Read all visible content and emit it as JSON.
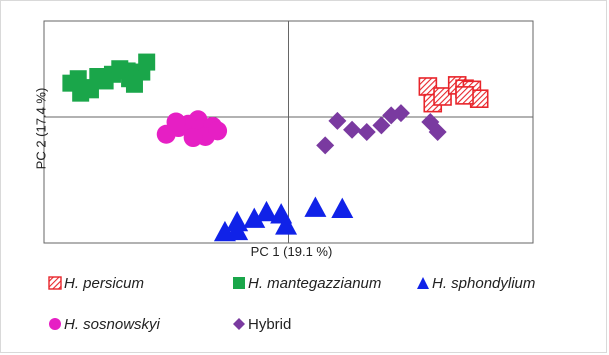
{
  "chart_data": {
    "type": "scatter",
    "xlabel": "PC 1 (19.1 %)",
    "ylabel": "PC 2 (17.4 %)",
    "xlim": [
      -10,
      10
    ],
    "ylim": [
      -10,
      10
    ],
    "grid": false,
    "zero_lines": true,
    "legend_position": "bottom",
    "series": [
      {
        "name": "H. persicum",
        "genus": "H.",
        "species": "persicum",
        "marker": "hatched-square",
        "color": "#e8252b",
        "x": [
          5.7,
          5.9,
          6.3,
          6.9,
          7.2,
          7.5,
          7.8,
          7.2
        ],
        "y": [
          4.1,
          2.6,
          3.2,
          4.2,
          3.9,
          3.8,
          3.0,
          3.3
        ]
      },
      {
        "name": "H. mantegazzianum",
        "genus": "H.",
        "species": "mantegazzianum",
        "marker": "square",
        "color": "#1aa64a",
        "x": [
          -8.9,
          -8.6,
          -8.5,
          -8.1,
          -7.8,
          -7.2,
          -6.6,
          -6.5,
          -6.0,
          -6.3,
          -5.8,
          -8.3,
          -7.5,
          -6.9
        ],
        "y": [
          4.4,
          4.8,
          3.5,
          3.8,
          5.0,
          5.2,
          5.5,
          4.8,
          5.4,
          4.3,
          6.3,
          4.0,
          4.6,
          5.7
        ],
        "x2_note": ""
      },
      {
        "name": "H. sphondylium",
        "genus": "H.",
        "species": "sphondylium",
        "marker": "triangle",
        "color": "#1022e8",
        "x": [
          -2.6,
          -2.1,
          -2.1,
          -1.4,
          -0.9,
          -0.3,
          -0.1,
          1.1,
          2.2
        ],
        "y": [
          -9.0,
          -8.9,
          -8.1,
          -7.8,
          -7.2,
          -7.4,
          -8.4,
          -6.8,
          -6.9
        ]
      },
      {
        "name": "H. sosnowskyi",
        "genus": "H.",
        "species": "sosnowskyi",
        "marker": "circle",
        "color": "#e61fc4",
        "x": [
          -7.0,
          -8.3,
          -7.8,
          -7.4,
          -6.9,
          -6.4,
          -6.7,
          -7.9,
          -7.2,
          -6.2
        ],
        "y": [
          1.1,
          -0.2,
          0.4,
          0.7,
          0.3,
          0.5,
          -0.4,
          0.9,
          -0.5,
          0.1
        ],
        "x_shift": 3.3
      },
      {
        "name": "Hybrid",
        "genus": "",
        "species": "",
        "marker": "diamond",
        "color": "#7a3aa0",
        "x": [
          3.8,
          4.4,
          5.0,
          5.6,
          6.0,
          6.4,
          7.6,
          7.9,
          3.3
        ],
        "y": [
          1.0,
          0.2,
          0.0,
          0.6,
          1.5,
          1.7,
          0.9,
          0.0,
          -1.2
        ],
        "x_shift": -1.8
      }
    ]
  }
}
